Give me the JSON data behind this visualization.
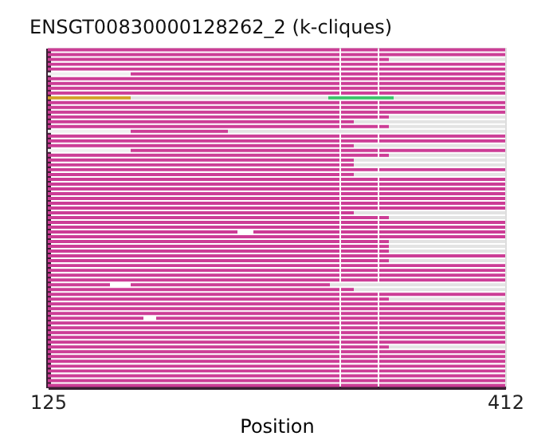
{
  "chart_data": {
    "type": "bar",
    "orientation": "horizontal",
    "title": "ENSGT00830000128262_2 (k-cliques)",
    "xlabel": "Position",
    "xlim": [
      125,
      412
    ],
    "xticks": [
      125,
      412
    ],
    "tick_labels": "x",
    "grid": false,
    "categories": [
      null,
      null,
      null,
      null,
      null,
      null,
      null,
      null,
      null,
      null,
      null,
      null,
      null,
      null,
      null,
      null,
      null,
      null,
      null,
      null,
      null,
      null,
      null,
      null,
      null,
      null,
      null,
      null,
      null,
      null,
      null,
      null,
      null,
      null,
      null,
      null,
      null,
      null,
      null,
      null,
      null,
      null,
      null,
      null,
      null,
      null,
      null,
      null,
      null,
      null,
      null,
      null,
      null,
      null,
      null,
      null,
      null,
      null,
      null,
      null,
      null,
      null,
      null,
      null,
      null,
      null,
      null,
      null,
      null,
      null,
      null
    ],
    "series": [
      {
        "base": [
          125,
          125,
          125,
          125,
          125,
          125,
          125,
          125,
          125,
          125,
          125,
          125,
          125,
          125,
          125,
          125,
          125,
          125,
          125,
          125,
          125,
          125,
          125,
          125,
          125,
          125,
          125,
          125,
          125,
          125,
          125,
          125,
          125,
          125,
          125,
          125,
          125,
          125,
          125,
          125,
          125,
          125,
          125,
          125,
          125,
          125,
          125,
          125,
          125,
          125,
          125,
          125,
          125,
          125,
          125,
          125,
          125,
          125,
          125,
          125,
          125,
          125,
          125,
          125,
          125,
          125,
          125,
          125,
          125,
          125,
          125
        ],
        "values": [
          52,
          52,
          52,
          52,
          52,
          52,
          52,
          52,
          52,
          52,
          52,
          52,
          52,
          52,
          52,
          52,
          52,
          52,
          52,
          52,
          52,
          52,
          52,
          52,
          52,
          52,
          52,
          52,
          52,
          52,
          52,
          52,
          52,
          52,
          52,
          52,
          52,
          52,
          52,
          52,
          52,
          52,
          52,
          52,
          52,
          52,
          52,
          52,
          52,
          39,
          52,
          52,
          52,
          52,
          52,
          52,
          52,
          52,
          52,
          52,
          52,
          52,
          52,
          52,
          52,
          52,
          52,
          52,
          52,
          52,
          52
        ],
        "colors": [
          "#cc3d96",
          "#cc3d96",
          "#cc3d96",
          "#cc3d96",
          "#cc3d96",
          "#f0f0f0",
          "#cc3d96",
          "#cc3d96",
          "#cc3d96",
          "#cc3d96",
          "#d4a02a",
          "#cc3d96",
          "#cc3d96",
          "#cc3d96",
          "#cc3d96",
          "#cc3d96",
          "#cc3d96",
          "#f0f0f0",
          "#cc3d96",
          "#cc3d96",
          "#cc3d96",
          "#f0f0f0",
          "#cc3d96",
          "#cc3d96",
          "#cc3d96",
          "#cc3d96",
          "#cc3d96",
          "#cc3d96",
          "#cc3d96",
          "#cc3d96",
          "#cc3d96",
          "#cc3d96",
          "#cc3d96",
          "#cc3d96",
          "#cc3d96",
          "#cc3d96",
          "#cc3d96",
          "#cc3d96",
          "#cc3d96",
          "#cc3d96",
          "#cc3d96",
          "#cc3d96",
          "#cc3d96",
          "#cc3d96",
          "#cc3d96",
          "#cc3d96",
          "#cc3d96",
          "#cc3d96",
          "#cc3d96",
          "#cc3d96",
          "#cc3d96",
          "#cc3d96",
          "#cc3d96",
          "#cc3d96",
          "#cc3d96",
          "#cc3d96",
          "#cc3d96",
          "#cc3d96",
          "#cc3d96",
          "#cc3d96",
          "#cc3d96",
          "#cc3d96",
          "#cc3d96",
          "#cc3d96",
          "#cc3d96",
          "#cc3d96",
          "#cc3d96",
          "#cc3d96",
          "#cc3d96",
          "#cc3d96",
          "#cc3d96"
        ]
      },
      {
        "base": [
          177,
          177,
          177,
          177,
          177,
          177,
          177,
          177,
          177,
          177,
          177,
          177,
          177,
          177,
          177,
          177,
          177,
          177,
          177,
          177,
          177,
          177,
          177,
          177,
          177,
          177,
          177,
          177,
          177,
          177,
          177,
          177,
          177,
          177,
          177,
          177,
          177,
          177,
          177,
          177,
          177,
          177,
          177,
          177,
          177,
          177,
          177,
          177,
          177,
          177,
          177,
          177,
          177,
          177,
          177,
          177,
          177,
          177,
          177,
          177,
          177,
          177,
          177,
          177,
          177,
          177,
          177,
          177,
          177,
          177,
          177
        ],
        "values": [
          131,
          131,
          131,
          131,
          131,
          131,
          131,
          131,
          131,
          131,
          124,
          131,
          131,
          131,
          131,
          131,
          131,
          61,
          131,
          131,
          131,
          131,
          131,
          131,
          131,
          131,
          131,
          131,
          131,
          131,
          131,
          131,
          131,
          131,
          131,
          131,
          131,
          131,
          67,
          131,
          131,
          131,
          131,
          131,
          131,
          131,
          131,
          131,
          131,
          125,
          131,
          131,
          131,
          131,
          131,
          131,
          8,
          131,
          131,
          131,
          131,
          131,
          131,
          131,
          131,
          131,
          131,
          131,
          131,
          131,
          131
        ],
        "colors": [
          "#cc3d96",
          "#cc3d96",
          "#cc3d96",
          "#cc3d96",
          "#cc3d96",
          "#cc3d96",
          "#cc3d96",
          "#cc3d96",
          "#cc3d96",
          "#cc3d96",
          "#e3e3e3",
          "#cc3d96",
          "#cc3d96",
          "#cc3d96",
          "#cc3d96",
          "#cc3d96",
          "#cc3d96",
          "#cc3d96",
          "#cc3d96",
          "#cc3d96",
          "#cc3d96",
          "#cc3d96",
          "#cc3d96",
          "#cc3d96",
          "#cc3d96",
          "#cc3d96",
          "#cc3d96",
          "#cc3d96",
          "#cc3d96",
          "#cc3d96",
          "#cc3d96",
          "#cc3d96",
          "#cc3d96",
          "#cc3d96",
          "#cc3d96",
          "#cc3d96",
          "#cc3d96",
          "#cc3d96",
          "#cc3d96",
          "#cc3d96",
          "#cc3d96",
          "#cc3d96",
          "#cc3d96",
          "#cc3d96",
          "#cc3d96",
          "#cc3d96",
          "#cc3d96",
          "#cc3d96",
          "#cc3d96",
          "#cc3d96",
          "#cc3d96",
          "#cc3d96",
          "#cc3d96",
          "#cc3d96",
          "#cc3d96",
          "#cc3d96",
          "#cc3d96",
          "#cc3d96",
          "#cc3d96",
          "#cc3d96",
          "#cc3d96",
          "#cc3d96",
          "#cc3d96",
          "#cc3d96",
          "#cc3d96",
          "#cc3d96",
          "#cc3d96",
          "#cc3d96",
          "#cc3d96",
          "#cc3d96",
          "#cc3d96"
        ]
      },
      {
        "base": [
          309,
          309,
          309,
          309,
          309,
          309,
          309,
          309,
          309,
          309,
          301,
          309,
          309,
          309,
          309,
          309,
          309,
          238,
          309,
          309,
          309,
          309,
          309,
          309,
          309,
          309,
          309,
          309,
          309,
          309,
          309,
          309,
          309,
          309,
          309,
          309,
          309,
          309,
          309,
          309,
          309,
          309,
          309,
          309,
          309,
          309,
          309,
          309,
          309,
          302,
          309,
          309,
          309,
          309,
          309,
          309,
          309,
          309,
          309,
          309,
          309,
          309,
          309,
          309,
          309,
          309,
          309,
          309,
          309,
          309,
          309
        ],
        "values": [
          23,
          23,
          23,
          23,
          23,
          23,
          23,
          23,
          23,
          23,
          41,
          23,
          23,
          23,
          23,
          8,
          23,
          174,
          23,
          23,
          8,
          23,
          23,
          8,
          8,
          23,
          8,
          23,
          23,
          23,
          23,
          23,
          23,
          23,
          8,
          23,
          23,
          23,
          23,
          23,
          23,
          23,
          23,
          23,
          23,
          23,
          23,
          23,
          23,
          110,
          8,
          23,
          23,
          23,
          23,
          23,
          23,
          23,
          23,
          23,
          23,
          23,
          23,
          23,
          23,
          23,
          23,
          23,
          23,
          23,
          23
        ],
        "colors": [
          "#cc3d96",
          "#cc3d96",
          "#cc3d96",
          "#cc3d96",
          "#cc3d96",
          "#cc3d96",
          "#cc3d96",
          "#cc3d96",
          "#cc3d96",
          "#cc3d96",
          "#3cc46a",
          "#cc3d96",
          "#cc3d96",
          "#cc3d96",
          "#cc3d96",
          "#cc3d96",
          "#cc3d96",
          "#e3e3e3",
          "#cc3d96",
          "#cc3d96",
          "#cc3d96",
          "#cc3d96",
          "#cc3d96",
          "#cc3d96",
          "#cc3d96",
          "#cc3d96",
          "#cc3d96",
          "#cc3d96",
          "#cc3d96",
          "#cc3d96",
          "#cc3d96",
          "#cc3d96",
          "#cc3d96",
          "#cc3d96",
          "#cc3d96",
          "#cc3d96",
          "#cc3d96",
          "#cc3d96",
          "#cc3d96",
          "#cc3d96",
          "#cc3d96",
          "#cc3d96",
          "#cc3d96",
          "#cc3d96",
          "#cc3d96",
          "#cc3d96",
          "#cc3d96",
          "#cc3d96",
          "#cc3d96",
          "#e3e3e3",
          "#cc3d96",
          "#cc3d96",
          "#cc3d96",
          "#cc3d96",
          "#cc3d96",
          "#cc3d96",
          "#cc3d96",
          "#cc3d96",
          "#cc3d96",
          "#cc3d96",
          "#cc3d96",
          "#cc3d96",
          "#cc3d96",
          "#cc3d96",
          "#cc3d96",
          "#cc3d96",
          "#cc3d96",
          "#cc3d96",
          "#cc3d96",
          "#cc3d96",
          "#cc3d96"
        ]
      },
      {
        "base": [
          333,
          333,
          333,
          333,
          333,
          333,
          333,
          333,
          333,
          333,
          342,
          333,
          333,
          333,
          333,
          317,
          333,
          null,
          333,
          333,
          317,
          333,
          333,
          317,
          317,
          333,
          317,
          333,
          333,
          333,
          333,
          333,
          333,
          333,
          317,
          333,
          333,
          333,
          333,
          333,
          333,
          333,
          333,
          333,
          333,
          333,
          333,
          333,
          333,
          null,
          317,
          333,
          333,
          333,
          333,
          333,
          333,
          333,
          333,
          333,
          333,
          333,
          333,
          333,
          333,
          333,
          333,
          333,
          333,
          333,
          333
        ],
        "values": [
          79,
          79,
          6,
          79,
          79,
          79,
          79,
          79,
          79,
          79,
          70,
          79,
          79,
          79,
          6,
          95,
          6,
          null,
          79,
          79,
          95,
          79,
          6,
          95,
          95,
          79,
          95,
          79,
          79,
          79,
          79,
          79,
          79,
          79,
          95,
          6,
          79,
          79,
          79,
          79,
          6,
          6,
          6,
          79,
          6,
          79,
          79,
          79,
          79,
          null,
          95,
          79,
          6,
          79,
          79,
          79,
          79,
          79,
          79,
          79,
          79,
          79,
          6,
          79,
          79,
          79,
          79,
          79,
          79,
          79,
          79
        ],
        "colors": [
          "#cc3d96",
          "#cc3d96",
          "#cc3d96",
          "#cc3d96",
          "#cc3d96",
          "#cc3d96",
          "#cc3d96",
          "#cc3d96",
          "#cc3d96",
          "#cc3d96",
          "#e3e3e3",
          "#cc3d96",
          "#cc3d96",
          "#cc3d96",
          "#cc3d96",
          "#e3e3e3",
          "#cc3d96",
          null,
          "#cc3d96",
          "#cc3d96",
          "#e3e3e3",
          "#cc3d96",
          "#cc3d96",
          "#e3e3e3",
          "#e3e3e3",
          "#cc3d96",
          "#e3e3e3",
          "#cc3d96",
          "#cc3d96",
          "#cc3d96",
          "#cc3d96",
          "#cc3d96",
          "#cc3d96",
          "#cc3d96",
          "#e3e3e3",
          "#cc3d96",
          "#cc3d96",
          "#cc3d96",
          "#cc3d96",
          "#cc3d96",
          "#cc3d96",
          "#cc3d96",
          "#cc3d96",
          "#cc3d96",
          "#cc3d96",
          "#cc3d96",
          "#cc3d96",
          "#cc3d96",
          "#cc3d96",
          null,
          "#e3e3e3",
          "#cc3d96",
          "#cc3d96",
          "#cc3d96",
          "#cc3d96",
          "#cc3d96",
          "#cc3d96",
          "#cc3d96",
          "#cc3d96",
          "#cc3d96",
          "#cc3d96",
          "#cc3d96",
          "#cc3d96",
          "#cc3d96",
          "#cc3d96",
          "#cc3d96",
          "#cc3d96",
          "#cc3d96",
          "#cc3d96",
          "#cc3d96",
          "#cc3d96"
        ]
      },
      {
        "base": [
          null,
          null,
          339,
          null,
          null,
          null,
          null,
          null,
          null,
          null,
          null,
          null,
          null,
          null,
          339,
          null,
          339,
          null,
          null,
          null,
          null,
          null,
          339,
          null,
          null,
          null,
          null,
          null,
          null,
          null,
          null,
          null,
          null,
          null,
          null,
          339,
          null,
          null,
          254,
          null,
          339,
          339,
          339,
          null,
          339,
          null,
          null,
          null,
          null,
          null,
          null,
          null,
          339,
          null,
          null,
          null,
          193,
          null,
          null,
          null,
          null,
          null,
          339,
          null,
          null,
          null,
          null,
          null,
          null,
          null,
          null
        ],
        "values": [
          null,
          null,
          73,
          null,
          null,
          null,
          null,
          null,
          null,
          null,
          null,
          null,
          null,
          null,
          73,
          null,
          73,
          null,
          null,
          null,
          null,
          null,
          73,
          null,
          null,
          null,
          null,
          null,
          null,
          null,
          null,
          null,
          null,
          null,
          null,
          73,
          null,
          null,
          54,
          null,
          73,
          73,
          73,
          null,
          73,
          null,
          null,
          null,
          null,
          null,
          null,
          null,
          73,
          null,
          null,
          null,
          115,
          null,
          null,
          null,
          null,
          null,
          73,
          null,
          null,
          null,
          null,
          null,
          null,
          null,
          null
        ],
        "colors": [
          null,
          null,
          "#e3e3e3",
          null,
          null,
          null,
          null,
          null,
          null,
          null,
          null,
          null,
          null,
          null,
          "#e3e3e3",
          null,
          "#e3e3e3",
          null,
          null,
          null,
          null,
          null,
          "#e3e3e3",
          null,
          null,
          null,
          null,
          null,
          null,
          null,
          null,
          null,
          null,
          null,
          null,
          "#e3e3e3",
          null,
          null,
          "#cc3d96",
          null,
          "#e3e3e3",
          "#e3e3e3",
          "#e3e3e3",
          null,
          "#e3e3e3",
          null,
          null,
          null,
          null,
          null,
          null,
          null,
          "#e3e3e3",
          null,
          null,
          null,
          "#cc3d96",
          null,
          null,
          null,
          null,
          null,
          "#e3e3e3",
          null,
          null,
          null,
          null,
          null,
          null,
          null,
          null
        ]
      }
    ]
  }
}
